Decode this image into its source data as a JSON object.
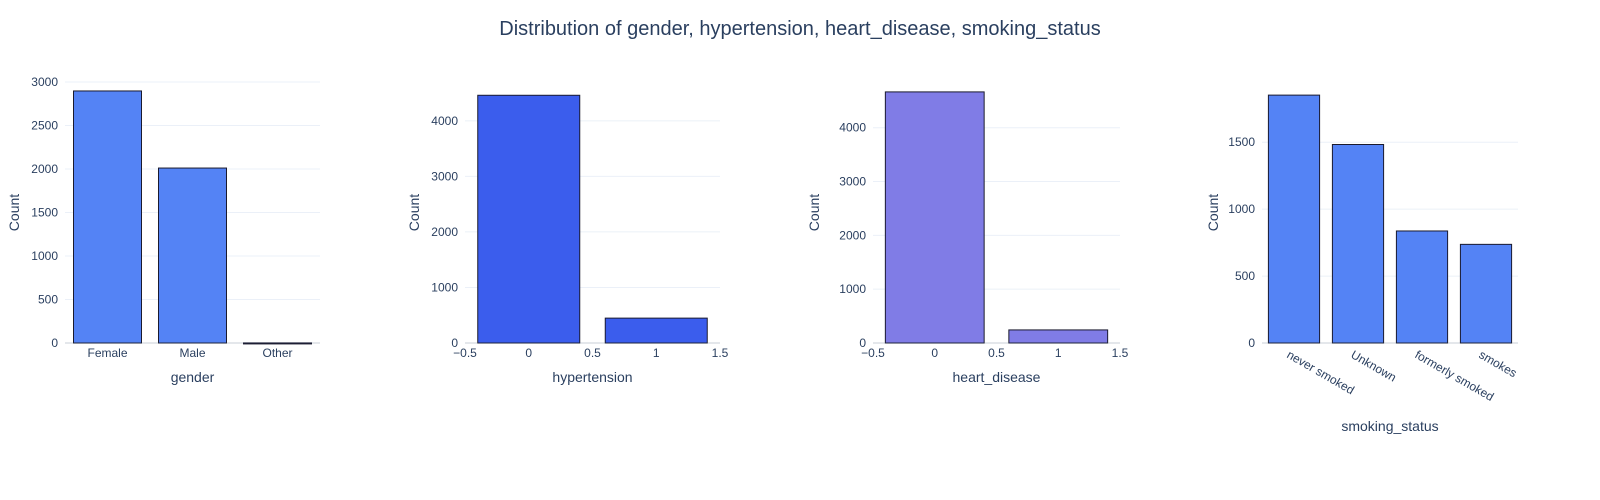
{
  "title": "Distribution of gender, hypertension, heart_disease, smoking_status",
  "chart_data": [
    {
      "type": "bar",
      "axis": "category",
      "categories": [
        "Female",
        "Male",
        "Other"
      ],
      "values": [
        2897,
        2011,
        1
      ],
      "xlabel": "gender",
      "ylabel": "Count",
      "ylim": [
        0,
        3000
      ],
      "yticks": [
        0,
        500,
        1000,
        1500,
        2000,
        2500,
        3000
      ],
      "color": "#5483f5"
    },
    {
      "type": "bar",
      "axis": "linear",
      "x": [
        0,
        1
      ],
      "values": [
        4461,
        448
      ],
      "xlabel": "hypertension",
      "ylabel": "Count",
      "xlim": [
        -0.5,
        1.5
      ],
      "xticks": [
        "−0.5",
        "0",
        "0.5",
        "1",
        "1.5"
      ],
      "ylim": [
        0,
        4700
      ],
      "yticks": [
        0,
        1000,
        2000,
        3000,
        4000
      ],
      "color": "#3b5ded"
    },
    {
      "type": "bar",
      "axis": "linear",
      "x": [
        0,
        1
      ],
      "values": [
        4666,
        243
      ],
      "xlabel": "heart_disease",
      "ylabel": "Count",
      "xlim": [
        -0.5,
        1.5
      ],
      "xticks": [
        "−0.5",
        "0",
        "0.5",
        "1",
        "1.5"
      ],
      "ylim": [
        0,
        4850
      ],
      "yticks": [
        0,
        1000,
        2000,
        3000,
        4000
      ],
      "color": "#807ce6"
    },
    {
      "type": "bar",
      "axis": "category",
      "categories": [
        "never smoked",
        "Unknown",
        "formerly smoked",
        "smokes"
      ],
      "values": [
        1852,
        1483,
        837,
        737
      ],
      "xlabel": "smoking_status",
      "ylabel": "Count",
      "ylim": [
        0,
        1950
      ],
      "yticks": [
        0,
        500,
        1000,
        1500
      ],
      "rotate_ticks": true,
      "color": "#5483f5"
    }
  ]
}
